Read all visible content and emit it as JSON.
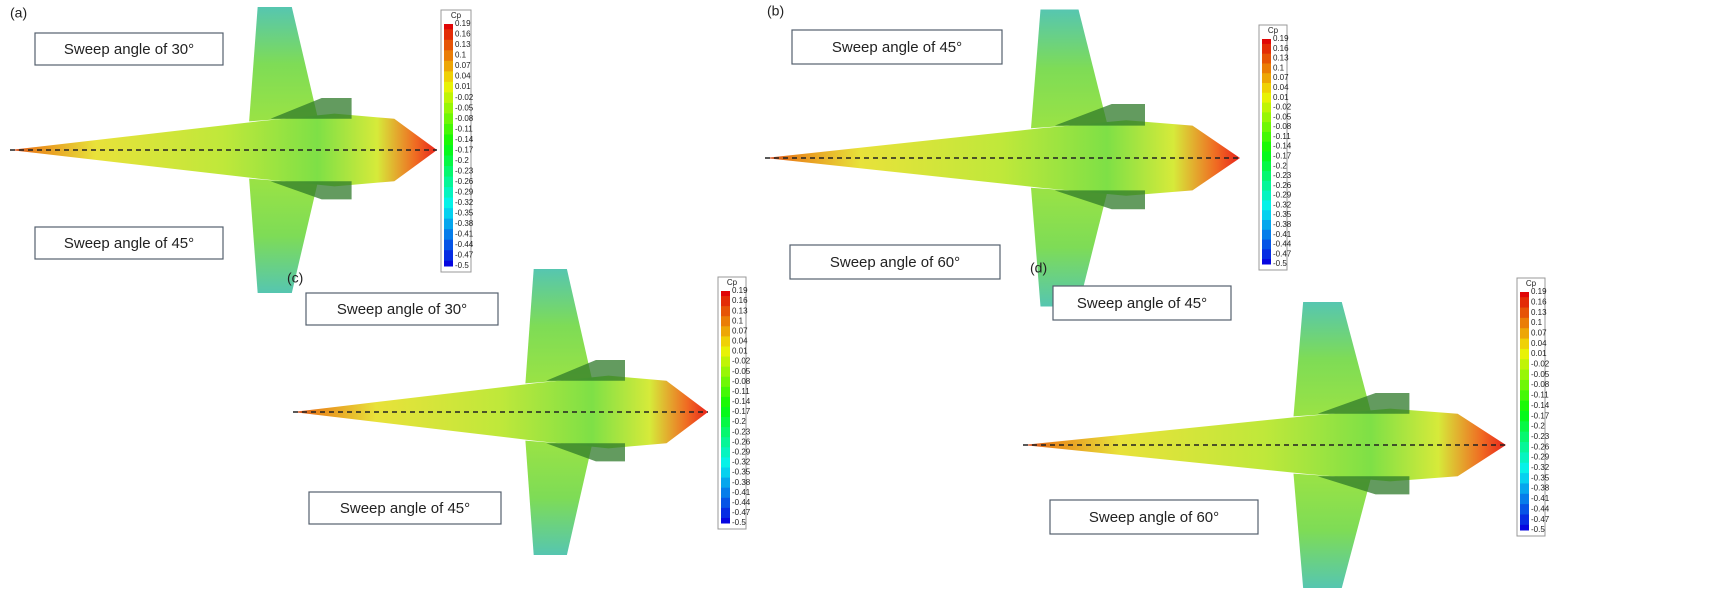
{
  "panels": [
    {
      "label": "(a)",
      "top_label": "Sweep angle of 30°",
      "bottom_label": "Sweep angle of 45°",
      "colorbar": {
        "title": "Cp",
        "ticks": [
          0.19,
          0.16,
          0.13,
          0.1,
          0.07,
          0.04,
          0.01,
          -0.02,
          -0.05,
          -0.08,
          -0.11,
          -0.14,
          -0.17,
          -0.2,
          -0.23,
          -0.26,
          -0.29,
          -0.32,
          -0.35,
          -0.38,
          -0.41,
          -0.44,
          -0.47,
          -0.5
        ]
      }
    },
    {
      "label": "(b)",
      "top_label": "Sweep angle of 45°",
      "bottom_label": "Sweep angle of 60°",
      "colorbar": {
        "title": "Cp",
        "ticks": [
          0.19,
          0.16,
          0.13,
          0.1,
          0.07,
          0.04,
          0.01,
          -0.02,
          -0.05,
          -0.08,
          -0.11,
          -0.14,
          -0.17,
          -0.2,
          -0.23,
          -0.26,
          -0.29,
          -0.32,
          -0.35,
          -0.38,
          -0.41,
          -0.44,
          -0.47,
          -0.5
        ]
      }
    },
    {
      "label": "(c)",
      "top_label": "Sweep angle of 30°",
      "bottom_label": "Sweep angle of 45°",
      "colorbar": {
        "title": "Cp",
        "ticks": [
          0.19,
          0.16,
          0.13,
          0.1,
          0.07,
          0.04,
          0.01,
          -0.02,
          -0.05,
          -0.08,
          -0.11,
          -0.14,
          -0.17,
          -0.2,
          -0.23,
          -0.26,
          -0.29,
          -0.32,
          -0.35,
          -0.38,
          -0.41,
          -0.44,
          -0.47,
          -0.5
        ]
      }
    },
    {
      "label": "(d)",
      "top_label": "Sweep angle of 45°",
      "bottom_label": "Sweep angle of 60°",
      "colorbar": {
        "title": "Cp",
        "ticks": [
          0.19,
          0.16,
          0.13,
          0.1,
          0.07,
          0.04,
          0.01,
          -0.02,
          -0.05,
          -0.08,
          -0.11,
          -0.14,
          -0.17,
          -0.2,
          -0.23,
          -0.26,
          -0.29,
          -0.32,
          -0.35,
          -0.38,
          -0.41,
          -0.44,
          -0.47,
          -0.5
        ]
      }
    }
  ]
}
